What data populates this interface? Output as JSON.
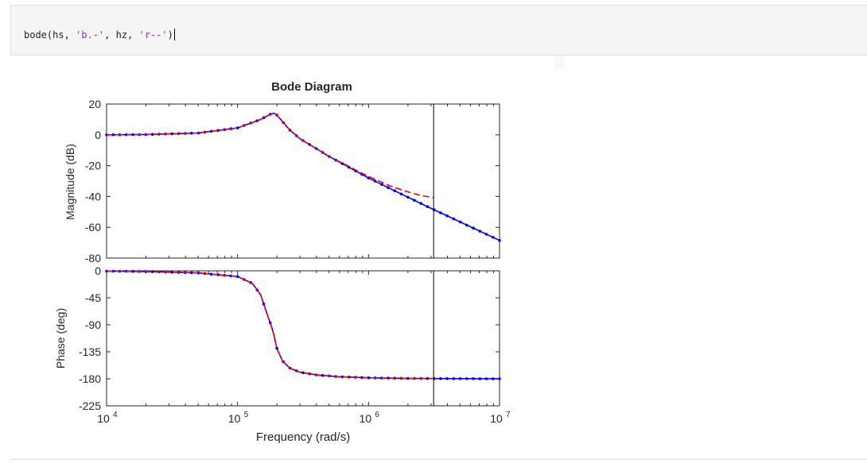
{
  "editor": {
    "code": {
      "func": "bode(hs, ",
      "arg1": "'b.-'",
      "mid": ", hz, ",
      "arg2": "'r--'",
      "close": ")"
    }
  },
  "colors": {
    "series_hs": "#0000ff",
    "series_hz": "#ff0000",
    "marker_line": "#000000",
    "axes": "#262626"
  },
  "chart_data": {
    "type": "line",
    "title": "Bode Diagram",
    "xlabel": "Frequency  (rad/s)",
    "xscale": "log",
    "xlim": [
      10000,
      10000000
    ],
    "xticks": [
      {
        "base": "10",
        "exp": "4"
      },
      {
        "base": "10",
        "exp": "5"
      },
      {
        "base": "10",
        "exp": "6"
      },
      {
        "base": "10",
        "exp": "7"
      }
    ],
    "vertical_marker_x": 3140000,
    "grid": false,
    "legend": "none",
    "magnitude": {
      "ylabel": "Magnitude (dB)",
      "ylim": [
        -80,
        20
      ],
      "yticks": [
        "20",
        "0",
        "-20",
        "-40",
        "-60",
        "-80"
      ],
      "series": [
        {
          "style": "b.-",
          "x": [
            10000,
            20000,
            50000,
            100000,
            150000,
            180000,
            190000,
            200000,
            250000,
            300000,
            500000,
            1000000,
            2000000,
            3140000,
            5000000,
            10000000
          ],
          "y": [
            0.0,
            0.2,
            1.2,
            4.5,
            10.0,
            13.6,
            14.0,
            12.8,
            3.2,
            -2.5,
            -14.0,
            -28.0,
            -40.5,
            -48.5,
            -56.5,
            -68.5
          ]
        },
        {
          "style": "r--",
          "x": [
            10000,
            20000,
            50000,
            100000,
            150000,
            180000,
            190000,
            200000,
            250000,
            300000,
            500000,
            1000000,
            1500000,
            2000000,
            2500000,
            3140000
          ],
          "y": [
            0.0,
            0.2,
            1.2,
            4.5,
            10.0,
            13.6,
            14.0,
            12.8,
            3.2,
            -2.5,
            -14.0,
            -27.0,
            -33.5,
            -37.0,
            -39.3,
            -40.8
          ]
        }
      ]
    },
    "phase": {
      "ylabel": "Phase (deg)",
      "ylim": [
        -225,
        0
      ],
      "yticks": [
        "0",
        "-45",
        "-90",
        "-135",
        "-180",
        "-225"
      ],
      "series": [
        {
          "style": "b.-",
          "x": [
            10000,
            20000,
            50000,
            100000,
            130000,
            150000,
            170000,
            180000,
            190000,
            200000,
            220000,
            250000,
            300000,
            400000,
            600000,
            1000000,
            2000000,
            3140000,
            10000000
          ],
          "y": [
            -0.5,
            -1.2,
            -3.5,
            -9.5,
            -21.0,
            -40.0,
            -75.0,
            -90.0,
            -108.0,
            -130.0,
            -150.0,
            -162.0,
            -169.0,
            -173.5,
            -176.5,
            -178.3,
            -179.3,
            -179.6,
            -179.9
          ]
        },
        {
          "style": "r--",
          "x": [
            10000,
            20000,
            50000,
            100000,
            130000,
            150000,
            170000,
            180000,
            190000,
            200000,
            220000,
            250000,
            300000,
            400000,
            600000,
            1000000,
            2000000,
            3140000
          ],
          "y": [
            -0.5,
            -1.2,
            -3.5,
            -9.5,
            -21.0,
            -40.0,
            -75.0,
            -90.0,
            -108.0,
            -130.0,
            -150.0,
            -162.0,
            -169.0,
            -173.5,
            -176.5,
            -178.3,
            -179.3,
            -179.6
          ]
        }
      ]
    }
  }
}
